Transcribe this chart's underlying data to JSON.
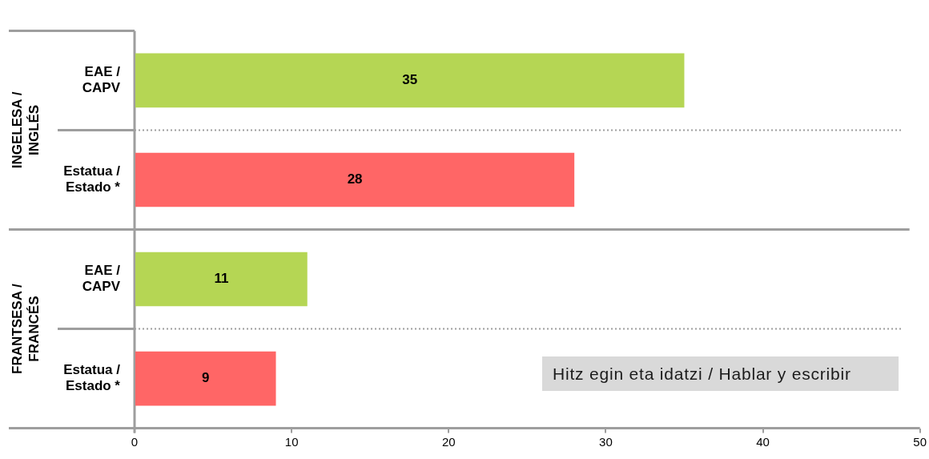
{
  "chart_data": {
    "type": "bar",
    "orientation": "horizontal",
    "categories": [
      "EAE / CAPV",
      "Estatua / Estado *",
      "EAE / CAPV",
      "Estatua / Estado *"
    ],
    "values": [
      35,
      28,
      11,
      9
    ],
    "colors": [
      "#b5d654",
      "#ff6666",
      "#b5d654",
      "#ff6666"
    ],
    "xlim": [
      0,
      50
    ],
    "xticks": [
      0,
      10,
      20,
      30,
      40,
      50
    ],
    "grid": "y",
    "data_labels": true,
    "annotations": [
      "INGELESA / INGLÉS",
      "FRANTSESA / FRANCÉS",
      "Hitz egin eta idatzi / Hablar y escribir"
    ]
  }
}
